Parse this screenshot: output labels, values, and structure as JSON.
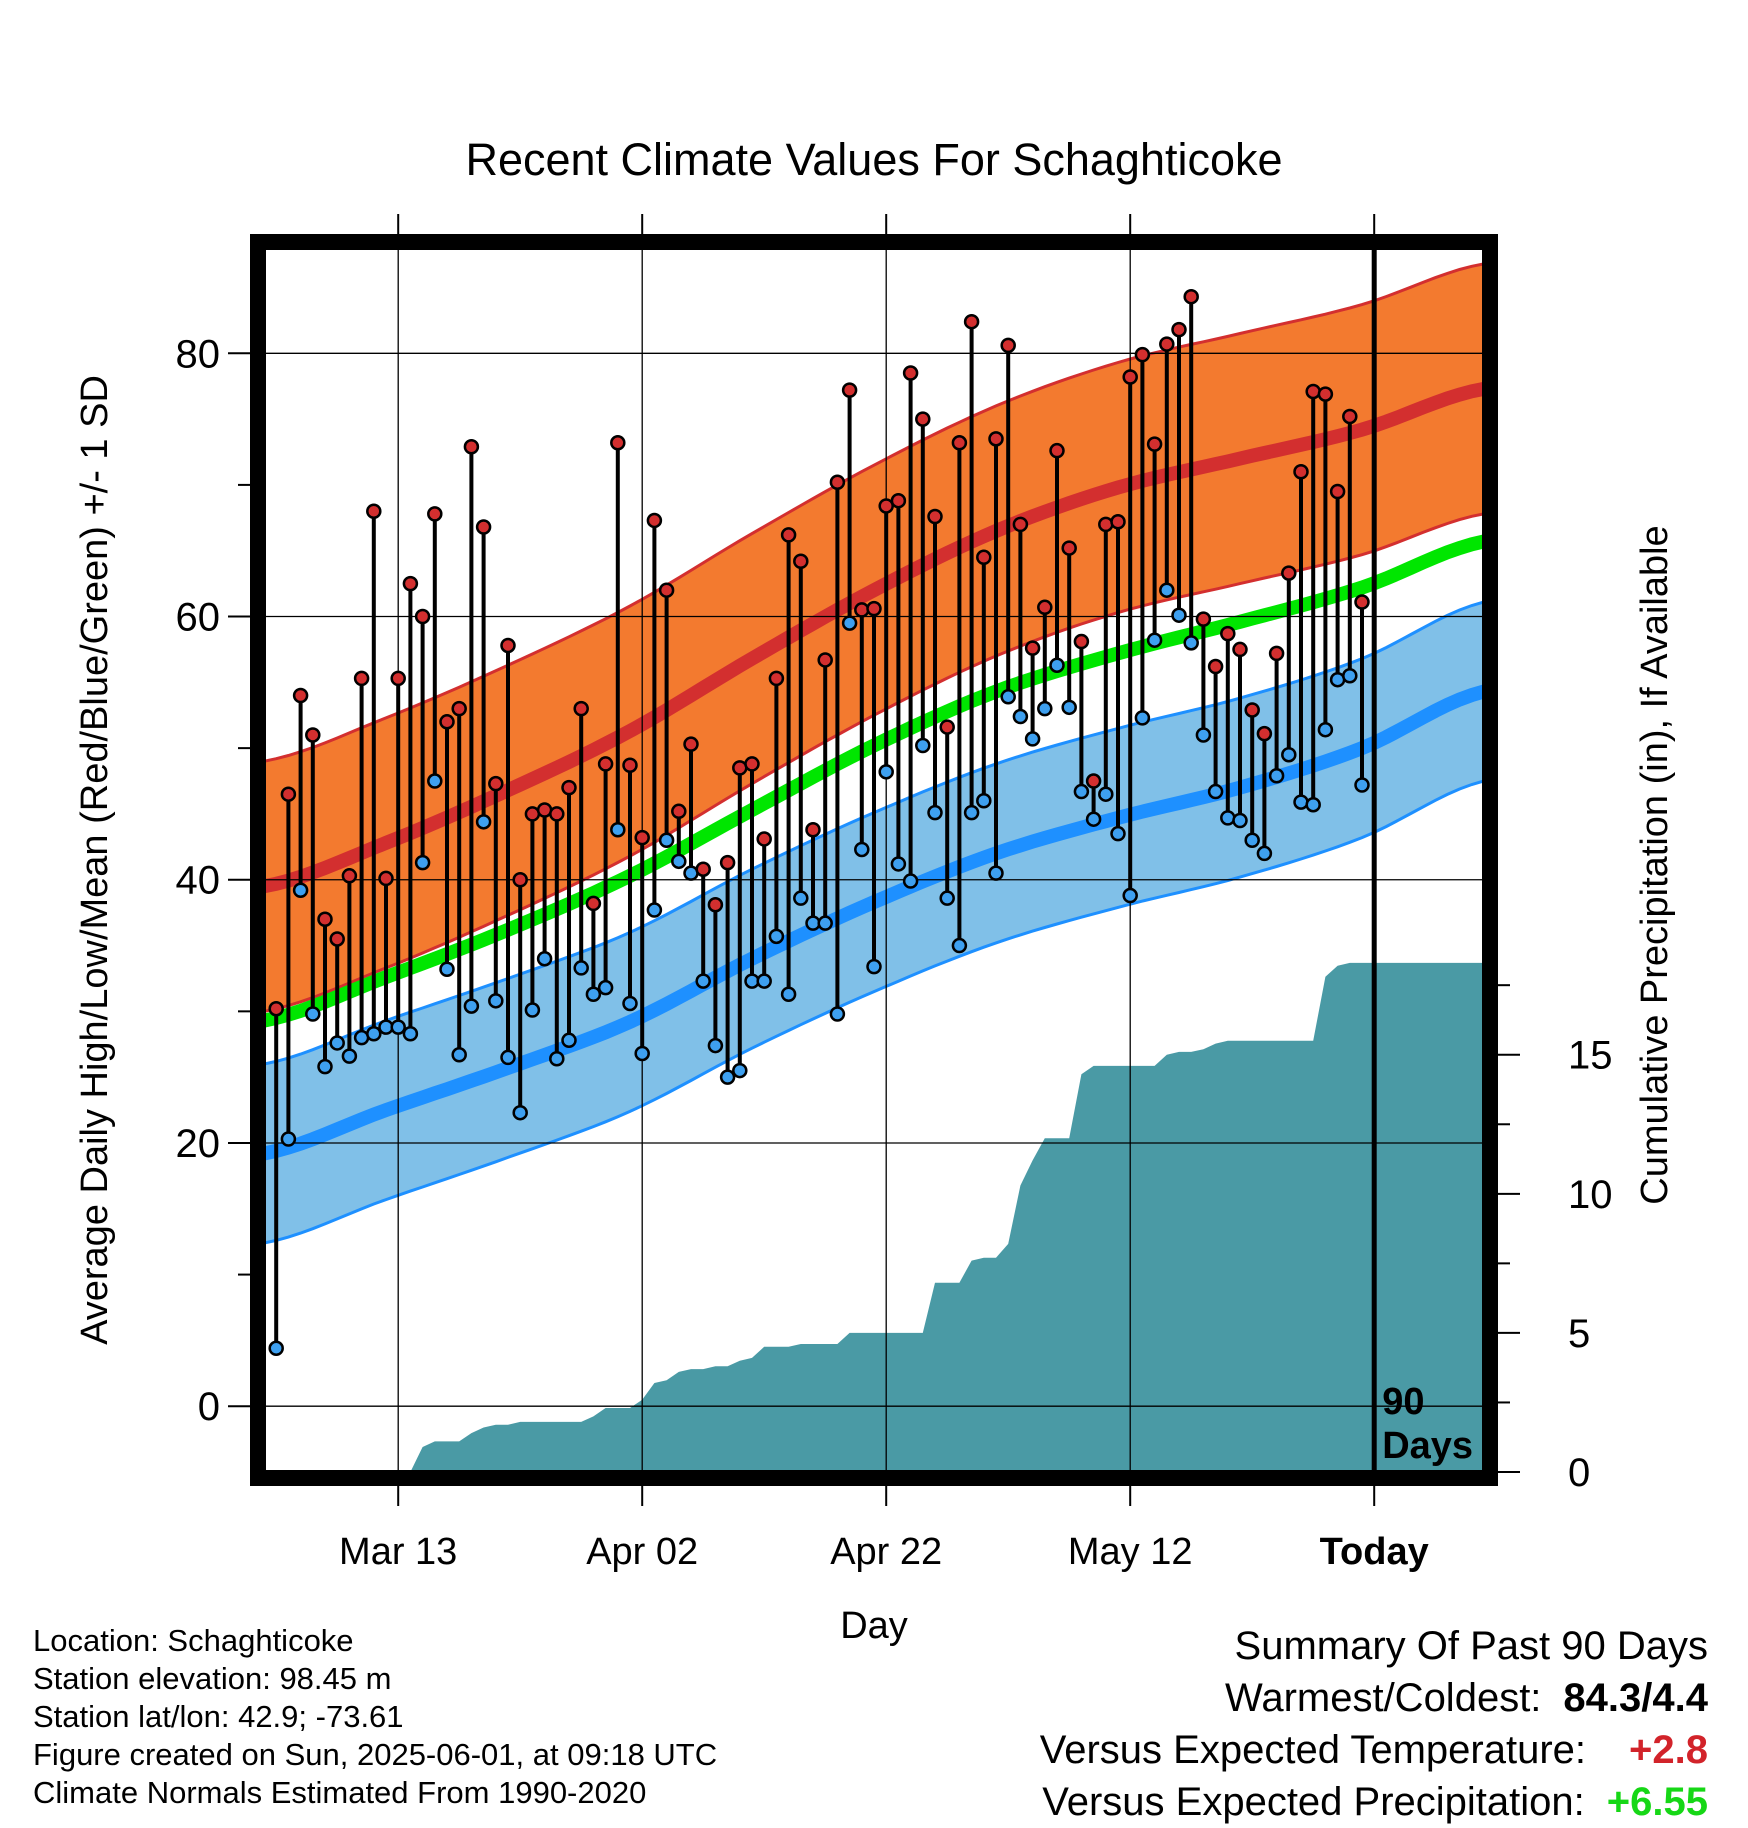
{
  "chart_data": {
    "type": "line",
    "title": "Recent Climate Values For Schaghticoke",
    "xlabel": "Day",
    "ylabel": "Average Daily High/Low/Mean (Red/Blue/Green) +/- 1 SD",
    "y2label": "Cumulative Precipitation (in), If Available",
    "xticks": [
      {
        "day": 11,
        "label": "Mar 13"
      },
      {
        "day": 31,
        "label": "Apr 02"
      },
      {
        "day": 51,
        "label": "Apr 22"
      },
      {
        "day": 71,
        "label": "May 12"
      },
      {
        "day": 91,
        "label": "Today"
      }
    ],
    "xlim": [
      0,
      100
    ],
    "yticks": [
      0,
      20,
      40,
      60,
      80
    ],
    "ylim": [
      -5,
      88
    ],
    "y2ticks": [
      0,
      5,
      10,
      15
    ],
    "y2lim": [
      0,
      44
    ],
    "grid": true,
    "today_marker_label": "90 Days",
    "normals": {
      "days": [
        0,
        10,
        20,
        30,
        40,
        50,
        60,
        70,
        80,
        90,
        100
      ],
      "high_mean": [
        39.5,
        42.8,
        46.8,
        51.3,
        56.8,
        62.0,
        66.5,
        69.8,
        72.0,
        74.2,
        77.3
      ],
      "high_sd": 9.5,
      "low_mean": [
        19.2,
        22.5,
        25.7,
        29.2,
        34.0,
        38.3,
        42.0,
        44.7,
        47.0,
        50.0,
        54.3
      ],
      "low_sd": 6.8,
      "mean": [
        29.3,
        32.6,
        36.2,
        40.3,
        45.3,
        50.2,
        54.3,
        57.2,
        59.6,
        62.2,
        65.7
      ],
      "colors": {
        "high": "#d32f2f",
        "high_band": "#f37a2f",
        "low": "#1e90ff",
        "low_band": "#80c0e8",
        "mean": "#00e600",
        "precip": "#4a9aa5"
      }
    },
    "observed": {
      "days": [
        1,
        2,
        3,
        4,
        5,
        6,
        7,
        8,
        9,
        10,
        11,
        12,
        13,
        14,
        15,
        16,
        17,
        18,
        19,
        20,
        21,
        22,
        23,
        24,
        25,
        26,
        27,
        28,
        29,
        30,
        31,
        32,
        33,
        34,
        35,
        36,
        37,
        38,
        39,
        40,
        41,
        42,
        43,
        44,
        45,
        46,
        47,
        48,
        49,
        50,
        51,
        52,
        53,
        54,
        55,
        56,
        57,
        58,
        59,
        60,
        61,
        62,
        63,
        64,
        65,
        66,
        67,
        68,
        69,
        70,
        71,
        72,
        73,
        74,
        75,
        76,
        77,
        78,
        79,
        80,
        81,
        82,
        83,
        84,
        85,
        86,
        87,
        88,
        89,
        90
      ],
      "high": [
        30.2,
        46.5,
        54.0,
        51.0,
        37.0,
        35.5,
        40.3,
        55.3,
        68.0,
        40.1,
        55.3,
        62.5,
        60.0,
        67.8,
        52.0,
        53.0,
        72.9,
        66.8,
        47.3,
        57.8,
        40.0,
        45.0,
        45.3,
        45.0,
        47.0,
        53.0,
        38.2,
        48.8,
        73.2,
        48.7,
        43.2,
        67.3,
        62.0,
        45.2,
        50.3,
        40.8,
        38.1,
        41.3,
        48.5,
        48.8,
        43.1,
        55.3,
        66.2,
        64.2,
        43.8,
        56.7,
        70.2,
        77.2,
        60.5,
        60.6,
        68.4,
        68.8,
        78.5,
        75.0,
        67.6,
        51.6,
        73.2,
        82.4,
        64.5,
        73.5,
        80.6,
        67.0,
        57.6,
        60.7,
        72.6,
        65.2,
        58.1,
        47.5,
        67.0,
        67.2,
        78.2,
        79.9,
        73.1,
        80.7,
        81.8,
        84.3,
        59.8,
        56.2,
        58.7,
        57.5,
        52.9,
        51.1,
        57.2,
        63.3,
        71.0,
        77.1,
        76.9,
        69.5,
        75.2,
        61.1
      ],
      "low": [
        4.4,
        20.3,
        39.2,
        29.8,
        25.8,
        27.6,
        26.6,
        28.0,
        28.3,
        28.8,
        28.8,
        28.3,
        41.3,
        47.5,
        33.2,
        26.7,
        30.4,
        44.4,
        30.8,
        26.5,
        22.3,
        30.1,
        34.0,
        26.4,
        27.8,
        33.3,
        31.3,
        31.8,
        43.8,
        30.6,
        26.8,
        37.7,
        43.0,
        41.4,
        40.5,
        32.3,
        27.4,
        25.0,
        25.5,
        32.3,
        32.3,
        35.7,
        31.3,
        38.6,
        36.7,
        36.7,
        29.8,
        59.5,
        42.3,
        33.4,
        48.2,
        41.2,
        39.9,
        50.2,
        45.1,
        38.6,
        35.0,
        45.1,
        46.0,
        40.5,
        53.9,
        52.4,
        50.7,
        53.0,
        56.3,
        53.1,
        46.7,
        44.6,
        46.5,
        43.5,
        38.8,
        52.3,
        58.2,
        62.0,
        60.1,
        58.0,
        51.0,
        46.7,
        44.7,
        44.5,
        43.0,
        42.0,
        47.9,
        49.5,
        45.9,
        45.7,
        51.4,
        55.2,
        55.5,
        47.2
      ]
    },
    "precip_cumulative": {
      "days": [
        0,
        12,
        13,
        14,
        16,
        17,
        18,
        19,
        20,
        21,
        22,
        24,
        26,
        27,
        28,
        29,
        30,
        31,
        32,
        33,
        34,
        35,
        36,
        37,
        38,
        39,
        40,
        41,
        42,
        43,
        44,
        45,
        46,
        47,
        48,
        49,
        50,
        51,
        52,
        53,
        54,
        55,
        56,
        57,
        58,
        59,
        60,
        61,
        62,
        63,
        64,
        65,
        66,
        67,
        68,
        69,
        70,
        71,
        72,
        73,
        74,
        75,
        76,
        77,
        78,
        79,
        80,
        81,
        82,
        83,
        84,
        85,
        86,
        87,
        88,
        89,
        90,
        91,
        100
      ],
      "values": [
        0.0,
        0.0,
        0.9,
        1.1,
        1.1,
        1.4,
        1.6,
        1.7,
        1.7,
        1.8,
        1.8,
        1.8,
        1.8,
        2.0,
        2.3,
        2.3,
        2.3,
        2.6,
        3.2,
        3.3,
        3.6,
        3.7,
        3.7,
        3.8,
        3.8,
        4.0,
        4.1,
        4.5,
        4.5,
        4.5,
        4.6,
        4.6,
        4.6,
        4.6,
        5.0,
        5.0,
        5.0,
        5.0,
        5.0,
        5.0,
        5.0,
        6.8,
        6.8,
        6.8,
        7.6,
        7.7,
        7.7,
        8.2,
        10.3,
        11.2,
        12.0,
        12.0,
        12.0,
        14.3,
        14.6,
        14.6,
        14.6,
        14.6,
        14.6,
        14.6,
        15.0,
        15.1,
        15.1,
        15.2,
        15.4,
        15.5,
        15.5,
        15.5,
        15.5,
        15.5,
        15.5,
        15.5,
        15.5,
        17.8,
        18.2,
        18.3,
        18.3,
        18.3,
        18.3
      ]
    }
  },
  "info": {
    "location": "Location: Schaghticoke",
    "elevation": "Station elevation: 98.45 m",
    "latlon": "Station lat/lon: 42.9; -73.61",
    "created": "Figure created on Sun, 2025-06-01, at 09:18 UTC",
    "normals_period": "Climate Normals Estimated From 1990-2020"
  },
  "summary": {
    "title": "Summary Of Past 90 Days",
    "warmest_coldest_label": "Warmest/Coldest:",
    "warmest_coldest_value": "84.3/4.4",
    "temp_label": "Versus Expected Temperature:",
    "temp_value": "+2.8",
    "precip_label": "Versus Expected Precipitation:",
    "precip_value": "+6.55"
  }
}
